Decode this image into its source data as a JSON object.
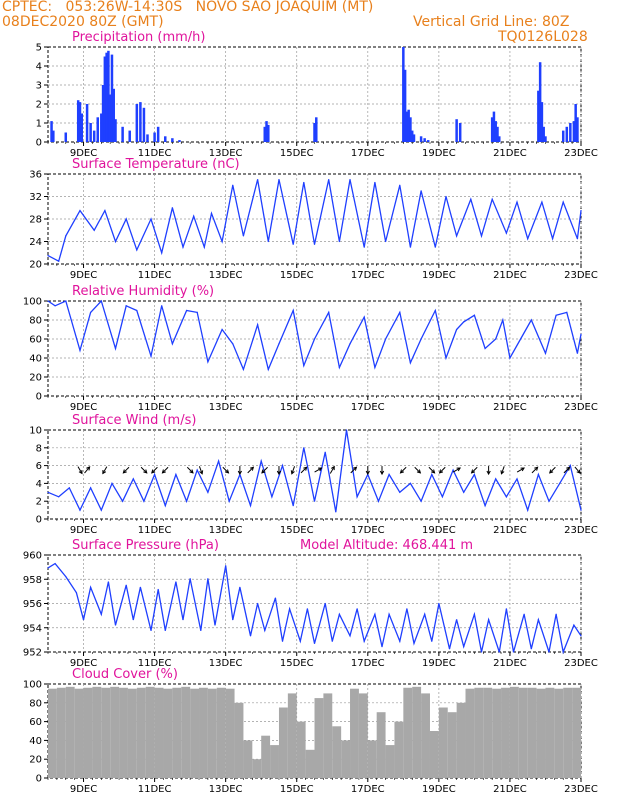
{
  "header": {
    "line1_left": "CPTEC:   053:26W-14:30S   NOVO SAO JOAQUIM (MT)",
    "line2_left": "08DEC2020 80Z (GMT)",
    "line2_right": "Vertical Grid Line: 80Z",
    "line3_right": "TQ0126L028"
  },
  "colors": {
    "header": "#e8801c",
    "title": "#e0149c",
    "series": "#1f3fff",
    "cloud": "#a8a8a8"
  },
  "x_axis": {
    "ticks": [
      {
        "day": 9,
        "label": "9DEC"
      },
      {
        "day": 11,
        "label": "11DEC"
      },
      {
        "day": 13,
        "label": "13DEC"
      },
      {
        "day": 15,
        "label": "15DEC"
      },
      {
        "day": 17,
        "label": "17DEC"
      },
      {
        "day": 19,
        "label": "19DEC"
      },
      {
        "day": 21,
        "label": "21DEC"
      },
      {
        "day": 23,
        "label": "23DEC"
      }
    ],
    "range": [
      8.0,
      23.0
    ]
  },
  "chart_data": [
    {
      "type": "bar",
      "title": "Precipitation (mm/h)",
      "ylim": [
        0,
        5
      ],
      "yticks": [
        "0",
        "1",
        "2",
        "3",
        "4",
        "5"
      ],
      "series": [
        {
          "x": [
            8.1,
            8.15,
            8.5,
            8.85,
            8.9,
            8.95,
            9.1,
            9.2,
            9.3,
            9.4,
            9.5,
            9.55,
            9.6,
            9.65,
            9.7,
            9.75,
            9.8,
            9.85,
            9.9,
            10.1,
            10.3,
            10.5,
            10.6,
            10.7,
            10.8,
            11.0,
            11.1,
            11.3,
            11.5,
            11.7,
            14.1,
            14.15,
            14.2,
            15.5,
            15.55,
            18.0,
            18.05,
            18.1,
            18.15,
            18.2,
            18.25,
            18.3,
            18.5,
            18.6,
            18.7,
            19.5,
            19.6,
            20.5,
            20.55,
            20.6,
            20.65,
            20.7,
            21.8,
            21.85,
            21.9,
            21.95,
            22.0,
            22.5,
            22.6,
            22.7,
            22.8,
            22.85,
            22.9
          ],
          "values": [
            1.1,
            0.6,
            0.5,
            2.2,
            2.1,
            1.5,
            2.0,
            1.0,
            0.6,
            1.3,
            1.5,
            3.0,
            4.5,
            4.7,
            4.8,
            2.5,
            4.6,
            2.8,
            1.2,
            0.8,
            0.6,
            2.0,
            2.1,
            1.8,
            0.4,
            0.5,
            0.8,
            0.3,
            0.2,
            0.1,
            0.8,
            1.1,
            0.9,
            1.0,
            1.3,
            5.0,
            3.8,
            1.6,
            1.7,
            1.3,
            0.6,
            0.4,
            0.3,
            0.2,
            0.1,
            1.2,
            1.0,
            1.3,
            1.6,
            1.1,
            0.8,
            0.3,
            2.7,
            4.2,
            2.1,
            0.8,
            0.3,
            0.6,
            0.8,
            1.0,
            1.1,
            2.0,
            1.3
          ]
        }
      ]
    },
    {
      "type": "line",
      "title": "Surface Temperature (nC)",
      "ylim": [
        20,
        36
      ],
      "yticks": [
        "20",
        "24",
        "28",
        "32",
        "36"
      ],
      "series": [
        {
          "x": [
            8.0,
            8.3,
            8.5,
            8.9,
            9.3,
            9.6,
            9.9,
            10.2,
            10.5,
            10.9,
            11.2,
            11.5,
            11.8,
            12.1,
            12.4,
            12.6,
            12.9,
            13.2,
            13.5,
            13.9,
            14.2,
            14.5,
            14.9,
            15.2,
            15.5,
            15.9,
            16.2,
            16.5,
            16.9,
            17.2,
            17.5,
            17.9,
            18.2,
            18.5,
            18.9,
            19.2,
            19.5,
            19.9,
            20.2,
            20.5,
            20.9,
            21.2,
            21.5,
            21.9,
            22.2,
            22.5,
            22.9,
            23.0
          ],
          "values": [
            21.5,
            20.5,
            25.0,
            29.5,
            26.0,
            29.5,
            24.0,
            28.0,
            22.5,
            28.0,
            22.0,
            30.0,
            23.0,
            28.5,
            23.0,
            29.0,
            24.0,
            34.0,
            25.0,
            35.0,
            24.0,
            35.0,
            23.5,
            34.5,
            23.5,
            35.0,
            24.0,
            35.0,
            23.0,
            34.5,
            24.0,
            34.0,
            23.0,
            33.0,
            23.0,
            32.0,
            25.0,
            31.5,
            25.0,
            31.5,
            25.5,
            31.0,
            24.5,
            31.0,
            24.5,
            31.0,
            24.5,
            29.5
          ]
        }
      ]
    },
    {
      "type": "line",
      "title": "Relative Humidity (%)",
      "ylim": [
        0,
        100
      ],
      "yticks": [
        "0",
        "20",
        "40",
        "60",
        "80",
        "100"
      ],
      "series": [
        {
          "x": [
            8.0,
            8.2,
            8.5,
            8.9,
            9.2,
            9.5,
            9.9,
            10.2,
            10.5,
            10.9,
            11.2,
            11.5,
            11.9,
            12.2,
            12.5,
            12.9,
            13.2,
            13.5,
            13.9,
            14.2,
            14.5,
            14.9,
            15.2,
            15.5,
            15.9,
            16.2,
            16.5,
            16.9,
            17.2,
            17.5,
            17.9,
            18.2,
            18.5,
            18.9,
            19.2,
            19.5,
            19.7,
            20.0,
            20.3,
            20.6,
            20.8,
            21.0,
            21.3,
            21.6,
            22.0,
            22.3,
            22.6,
            22.9,
            23.0
          ],
          "values": [
            100,
            95,
            100,
            48,
            88,
            100,
            50,
            95,
            90,
            42,
            95,
            55,
            90,
            88,
            36,
            70,
            55,
            28,
            75,
            28,
            55,
            90,
            32,
            60,
            88,
            30,
            55,
            83,
            30,
            60,
            88,
            35,
            60,
            90,
            40,
            70,
            78,
            85,
            50,
            60,
            80,
            40,
            60,
            80,
            45,
            85,
            88,
            45,
            65
          ]
        }
      ]
    },
    {
      "type": "line",
      "title": "Surface Wind (m/s)",
      "ylim": [
        0,
        10
      ],
      "yticks": [
        "0",
        "2",
        "4",
        "6",
        "8",
        "10"
      ],
      "series": [
        {
          "x": [
            8.0,
            8.3,
            8.6,
            8.9,
            9.2,
            9.5,
            9.8,
            10.1,
            10.4,
            10.7,
            11.0,
            11.3,
            11.6,
            11.9,
            12.2,
            12.5,
            12.8,
            13.1,
            13.4,
            13.7,
            14.0,
            14.3,
            14.6,
            14.9,
            15.2,
            15.5,
            15.8,
            16.1,
            16.4,
            16.7,
            17.0,
            17.3,
            17.6,
            17.9,
            18.2,
            18.5,
            18.8,
            19.1,
            19.4,
            19.7,
            20.0,
            20.3,
            20.6,
            20.9,
            21.2,
            21.5,
            21.8,
            22.1,
            22.4,
            22.7,
            23.0
          ],
          "values": [
            3.0,
            2.5,
            3.5,
            1.0,
            3.5,
            1.0,
            4.0,
            2.0,
            4.5,
            2.0,
            5.0,
            1.5,
            5.0,
            2.0,
            5.5,
            3.0,
            6.5,
            2.0,
            5.0,
            1.5,
            6.5,
            2.5,
            6.0,
            1.5,
            8.0,
            2.0,
            7.5,
            0.8,
            10.0,
            2.5,
            5.0,
            2.0,
            5.0,
            3.0,
            4.0,
            2.0,
            5.0,
            2.5,
            5.5,
            3.0,
            5.0,
            1.5,
            4.5,
            2.5,
            4.5,
            1.0,
            5.0,
            2.0,
            4.0,
            6.0,
            1.0
          ]
        }
      ]
    },
    {
      "type": "line",
      "title": "Surface Pressure (hPa)",
      "annotation": "Model Altitude: 468.441  m",
      "ylim": [
        952,
        961
      ],
      "yticks": [
        "952",
        "954",
        "956",
        "958",
        "960"
      ],
      "series": [
        {
          "x": [
            8.0,
            8.2,
            8.5,
            8.8,
            9.0,
            9.2,
            9.5,
            9.7,
            9.9,
            10.2,
            10.4,
            10.6,
            10.9,
            11.1,
            11.3,
            11.6,
            11.8,
            12.0,
            12.3,
            12.5,
            12.7,
            13.0,
            13.2,
            13.4,
            13.7,
            13.9,
            14.1,
            14.4,
            14.6,
            14.8,
            15.1,
            15.3,
            15.5,
            15.8,
            16.0,
            16.2,
            16.5,
            16.7,
            16.9,
            17.2,
            17.4,
            17.6,
            17.9,
            18.1,
            18.3,
            18.6,
            18.8,
            19.0,
            19.3,
            19.5,
            19.7,
            20.0,
            20.2,
            20.4,
            20.7,
            20.9,
            21.1,
            21.4,
            21.6,
            21.8,
            22.1,
            22.3,
            22.5,
            22.8,
            23.0
          ],
          "values": [
            959.8,
            960.2,
            959.0,
            957.5,
            955.0,
            958.0,
            955.5,
            958.5,
            954.5,
            958.2,
            955.0,
            958.0,
            954.0,
            957.8,
            954.0,
            958.5,
            955.0,
            958.8,
            954.0,
            958.8,
            954.5,
            960.0,
            955.0,
            958.0,
            953.5,
            956.5,
            954.0,
            957.0,
            953.0,
            956.0,
            953.0,
            956.0,
            952.8,
            956.5,
            953.0,
            955.5,
            953.5,
            956.0,
            953.0,
            955.5,
            952.5,
            955.5,
            953.0,
            956.0,
            952.8,
            955.5,
            953.0,
            956.5,
            952.3,
            955.0,
            952.5,
            955.5,
            952.0,
            955.0,
            952.0,
            956.0,
            952.0,
            955.5,
            952.3,
            955.0,
            952.0,
            955.5,
            952.0,
            954.5,
            953.5
          ]
        }
      ]
    },
    {
      "type": "bar",
      "title": "Cloud Cover (%)",
      "ylim": [
        0,
        100
      ],
      "yticks": [
        "0",
        "20",
        "40",
        "60",
        "80",
        "100"
      ],
      "series": [
        {
          "x": [
            8.0,
            8.25,
            8.5,
            8.75,
            9.0,
            9.25,
            9.5,
            9.75,
            10.0,
            10.25,
            10.5,
            10.75,
            11.0,
            11.25,
            11.5,
            11.75,
            12.0,
            12.25,
            12.5,
            12.75,
            13.0,
            13.25,
            13.5,
            13.75,
            14.0,
            14.25,
            14.5,
            14.75,
            15.0,
            15.25,
            15.5,
            15.75,
            16.0,
            16.25,
            16.5,
            16.75,
            17.0,
            17.25,
            17.5,
            17.75,
            18.0,
            18.25,
            18.5,
            18.75,
            19.0,
            19.25,
            19.5,
            19.75,
            20.0,
            20.25,
            20.5,
            20.75,
            21.0,
            21.25,
            21.5,
            21.75,
            22.0,
            22.25,
            22.5,
            22.75
          ],
          "values": [
            95,
            96,
            97,
            95,
            96,
            97,
            96,
            97,
            96,
            95,
            96,
            97,
            96,
            95,
            96,
            97,
            95,
            96,
            95,
            96,
            95,
            80,
            40,
            20,
            45,
            35,
            75,
            90,
            60,
            30,
            85,
            90,
            55,
            40,
            95,
            90,
            40,
            70,
            35,
            60,
            96,
            97,
            90,
            50,
            75,
            70,
            80,
            95,
            96,
            96,
            95,
            96,
            97,
            96,
            96,
            95,
            96,
            95,
            96,
            96
          ]
        }
      ]
    }
  ],
  "wind_arrows": [
    {
      "day": 8.9,
      "dir_deg": 150
    },
    {
      "day": 9.1,
      "dir_deg": 40
    },
    {
      "day": 9.6,
      "dir_deg": 210
    },
    {
      "day": 10.2,
      "dir_deg": 225
    },
    {
      "day": 10.7,
      "dir_deg": 135
    },
    {
      "day": 11.0,
      "dir_deg": 225
    },
    {
      "day": 11.3,
      "dir_deg": 225
    },
    {
      "day": 12.0,
      "dir_deg": 135
    },
    {
      "day": 12.3,
      "dir_deg": 160
    },
    {
      "day": 13.0,
      "dir_deg": 135
    },
    {
      "day": 13.4,
      "dir_deg": 180
    },
    {
      "day": 13.7,
      "dir_deg": 45
    },
    {
      "day": 14.1,
      "dir_deg": 225
    },
    {
      "day": 14.5,
      "dir_deg": 180
    },
    {
      "day": 14.9,
      "dir_deg": 200
    },
    {
      "day": 15.2,
      "dir_deg": 45
    },
    {
      "day": 15.6,
      "dir_deg": 60
    },
    {
      "day": 16.0,
      "dir_deg": 30
    },
    {
      "day": 16.6,
      "dir_deg": 45
    },
    {
      "day": 17.0,
      "dir_deg": 180
    },
    {
      "day": 17.4,
      "dir_deg": 180
    },
    {
      "day": 18.0,
      "dir_deg": 225
    },
    {
      "day": 18.4,
      "dir_deg": 135
    },
    {
      "day": 18.8,
      "dir_deg": 135
    },
    {
      "day": 19.1,
      "dir_deg": 225
    },
    {
      "day": 19.5,
      "dir_deg": 60
    },
    {
      "day": 20.0,
      "dir_deg": 225
    },
    {
      "day": 20.4,
      "dir_deg": 180
    },
    {
      "day": 20.8,
      "dir_deg": 200
    },
    {
      "day": 21.3,
      "dir_deg": 60
    },
    {
      "day": 21.7,
      "dir_deg": 45
    },
    {
      "day": 22.2,
      "dir_deg": 225
    },
    {
      "day": 22.6,
      "dir_deg": 45
    },
    {
      "day": 22.9,
      "dir_deg": 140
    }
  ]
}
